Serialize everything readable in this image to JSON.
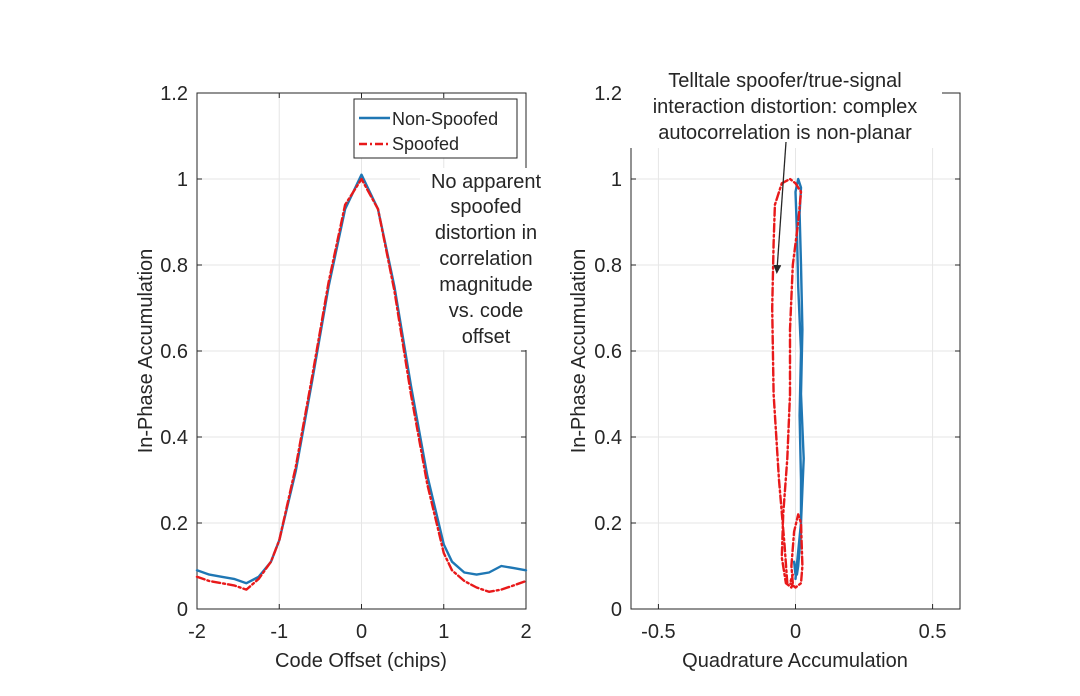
{
  "chart_data": [
    {
      "type": "line",
      "xlabel": "Code Offset (chips)",
      "ylabel": "In-Phase Accumulation",
      "xlim": [
        -2,
        2
      ],
      "ylim": [
        0,
        1.2
      ],
      "x_ticks": [
        -2,
        -1,
        0,
        1,
        2
      ],
      "y_ticks": [
        0,
        0.2,
        0.4,
        0.6,
        0.8,
        1,
        1.2
      ],
      "x_tick_labels": [
        "-2",
        "-1",
        "0",
        "1",
        "2"
      ],
      "y_tick_labels": [
        "0",
        "0.2",
        "0.4",
        "0.6",
        "0.8",
        "1",
        "1.2"
      ],
      "grid": true,
      "legend_position": "top-right",
      "annotation": [
        "No apparent",
        "spoofed",
        "distortion in",
        "correlation",
        "magnitude",
        "vs. code",
        "offset"
      ],
      "series": [
        {
          "name": "Non-Spoofed",
          "color": "#1f77b4",
          "style": "solid",
          "x": [
            -2,
            -1.85,
            -1.7,
            -1.55,
            -1.4,
            -1.25,
            -1.1,
            -1.0,
            -0.8,
            -0.6,
            -0.4,
            -0.2,
            0,
            0.2,
            0.4,
            0.6,
            0.8,
            1.0,
            1.1,
            1.25,
            1.4,
            1.55,
            1.7,
            1.85,
            2
          ],
          "y": [
            0.09,
            0.08,
            0.075,
            0.07,
            0.06,
            0.075,
            0.11,
            0.16,
            0.32,
            0.53,
            0.75,
            0.93,
            1.01,
            0.93,
            0.75,
            0.52,
            0.31,
            0.15,
            0.11,
            0.085,
            0.08,
            0.085,
            0.1,
            0.095,
            0.09
          ]
        },
        {
          "name": "Spoofed",
          "color": "#e8191a",
          "style": "dashdot",
          "x": [
            -2,
            -1.85,
            -1.7,
            -1.55,
            -1.4,
            -1.25,
            -1.1,
            -1.0,
            -0.8,
            -0.6,
            -0.4,
            -0.2,
            0,
            0.2,
            0.4,
            0.6,
            0.8,
            1.0,
            1.1,
            1.25,
            1.4,
            1.55,
            1.7,
            1.85,
            2
          ],
          "y": [
            0.075,
            0.065,
            0.06,
            0.055,
            0.045,
            0.07,
            0.11,
            0.16,
            0.33,
            0.54,
            0.76,
            0.94,
            1.0,
            0.93,
            0.74,
            0.5,
            0.29,
            0.13,
            0.09,
            0.065,
            0.05,
            0.04,
            0.045,
            0.055,
            0.065
          ]
        }
      ]
    },
    {
      "type": "line",
      "xlabel": "Quadrature Accumulation",
      "ylabel": "In-Phase Accumulation",
      "xlim": [
        -0.6,
        0.6
      ],
      "ylim": [
        0,
        1.2
      ],
      "x_ticks": [
        -0.5,
        0,
        0.5
      ],
      "y_ticks": [
        0,
        0.2,
        0.4,
        0.6,
        0.8,
        1,
        1.2
      ],
      "x_tick_labels": [
        "-0.5",
        "0",
        "0.5"
      ],
      "y_tick_labels": [
        "0",
        "0.2",
        "0.4",
        "0.6",
        "0.8",
        "1",
        "1.2"
      ],
      "grid": true,
      "annotation": [
        "Telltale spoofer/true-signal",
        "interaction distortion: complex",
        "autocorrelation is non-planar"
      ],
      "series": [
        {
          "name": "Non-Spoofed",
          "color": "#1f77b4",
          "style": "solid",
          "x": [
            0.0,
            0.02,
            0.03,
            0.02,
            0.025,
            0.02,
            0.015,
            0.02,
            0.01,
            0.0,
            0.005,
            0.01,
            0.02,
            0.015,
            0.02,
            0.02,
            0.01,
            0.005,
            0.0,
            -0.005,
            0.0
          ],
          "y": [
            0.07,
            0.2,
            0.35,
            0.5,
            0.65,
            0.8,
            0.92,
            0.98,
            1.0,
            0.97,
            0.88,
            0.75,
            0.6,
            0.45,
            0.3,
            0.18,
            0.1,
            0.08,
            0.09,
            0.11,
            0.08
          ]
        },
        {
          "name": "Spoofed",
          "color": "#e8191a",
          "style": "dashdot",
          "x": [
            -0.03,
            -0.04,
            -0.06,
            -0.08,
            -0.085,
            -0.08,
            -0.075,
            -0.05,
            -0.02,
            0.0,
            0.02,
            0.01,
            -0.01,
            -0.02,
            -0.02,
            -0.03,
            -0.045,
            -0.05,
            -0.035,
            -0.015,
            -0.01,
            -0.015,
            -0.005,
            0.01,
            0.02,
            0.025,
            0.02,
            0.0,
            -0.02,
            -0.01
          ],
          "y": [
            0.06,
            0.15,
            0.3,
            0.5,
            0.7,
            0.85,
            0.94,
            0.99,
            1.0,
            0.99,
            0.97,
            0.9,
            0.8,
            0.65,
            0.5,
            0.35,
            0.22,
            0.12,
            0.06,
            0.05,
            0.06,
            0.1,
            0.18,
            0.22,
            0.2,
            0.1,
            0.06,
            0.05,
            0.06,
            0.08
          ]
        }
      ]
    }
  ]
}
